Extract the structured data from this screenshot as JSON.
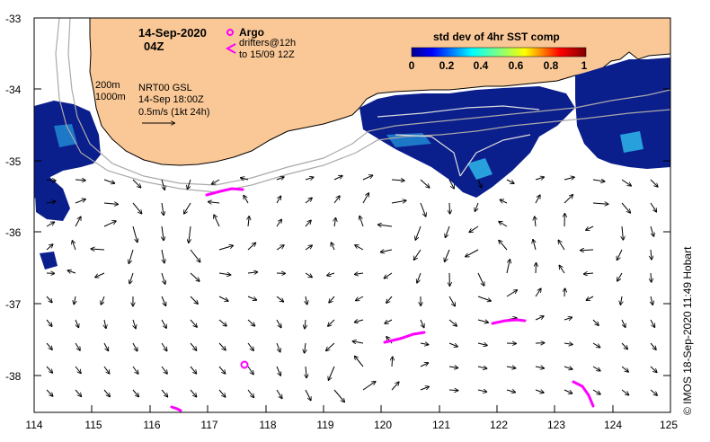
{
  "map": {
    "date": "14-Sep-2020",
    "time": "04Z",
    "product": "NRT00 GSL",
    "product_time": "14-Sep 18:00Z",
    "scale_label": "0.5m/s (1kt 24h)",
    "contour_200": "200m",
    "contour_1000": "1000m",
    "legend": {
      "argo_label": "Argo",
      "drifters_label": "drifters@12h",
      "drifters_sub": "to 15/09 12Z",
      "argo_color": "#ff00ff"
    },
    "colorbar": {
      "title": "std dev of 4hr SST comp",
      "ticks": [
        "0",
        "0.2",
        "0.4",
        "0.6",
        "0.8",
        "1"
      ]
    },
    "lat_ticks": [
      "-33",
      "-34",
      "-35",
      "-36",
      "-37",
      "-38"
    ],
    "lon_ticks": [
      "114",
      "115",
      "116",
      "117",
      "118",
      "119",
      "120",
      "121",
      "122",
      "123",
      "124",
      "125"
    ],
    "credit": "IMOS 18-Sep-2020 11:49 Hobart",
    "copyright": "©",
    "colors": {
      "land": "#fac896",
      "ocean": "#ffffff",
      "sst_dark": "#0a1e8c",
      "contour": "#aaaaaa",
      "drifter": "#ff00ff"
    }
  }
}
